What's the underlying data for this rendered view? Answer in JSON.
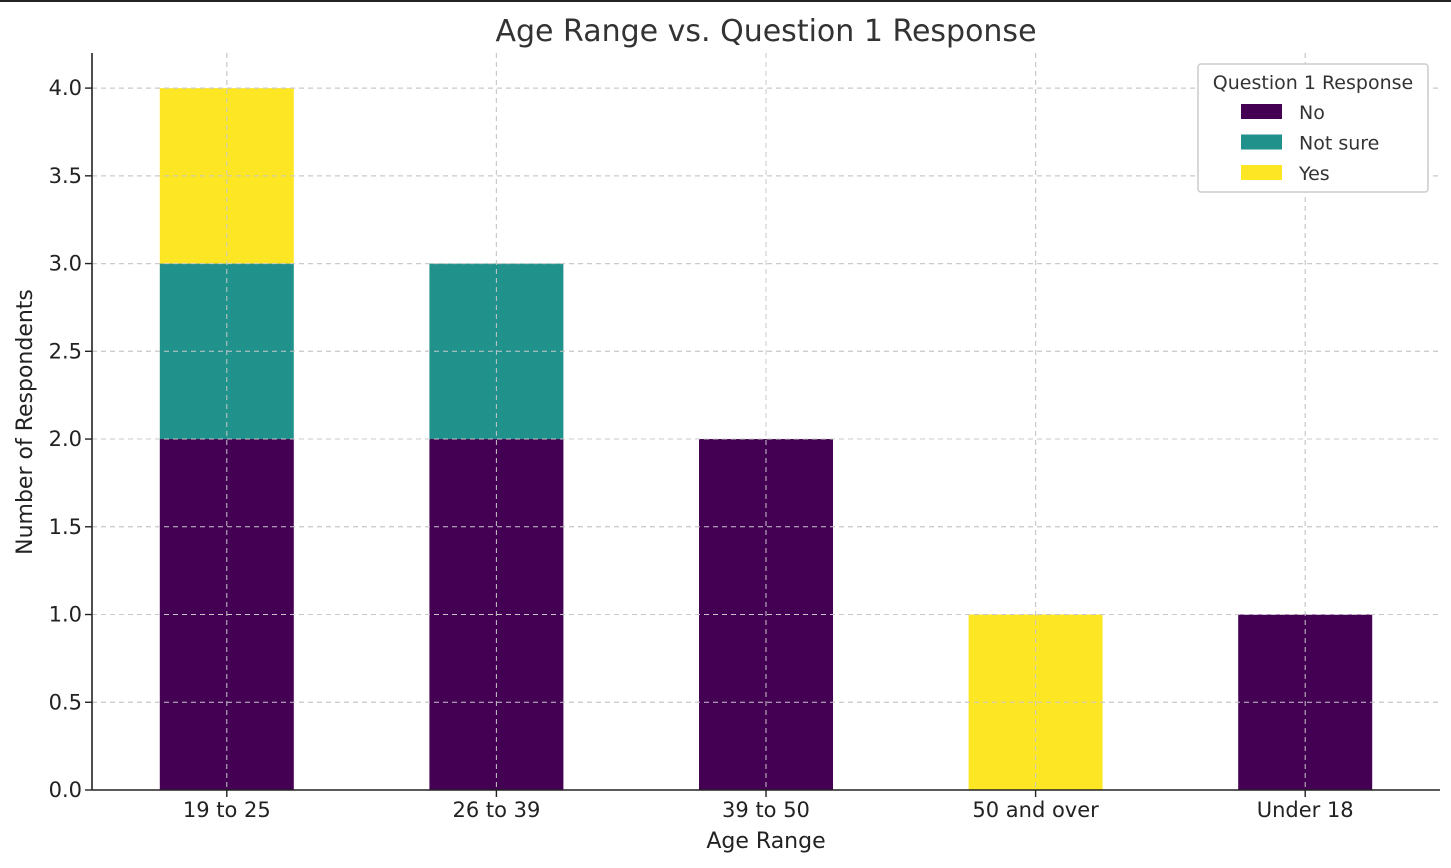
{
  "chart_data": {
    "type": "bar",
    "stacked": true,
    "title": "Age Range vs. Question 1 Response",
    "xlabel": "Age Range",
    "ylabel": "Number of Respondents",
    "categories": [
      "19 to 25",
      "26 to 39",
      "39 to 50",
      "50 and over",
      "Under 18"
    ],
    "series": [
      {
        "name": "No",
        "color": "#440154",
        "values": [
          2,
          2,
          2,
          0,
          1
        ]
      },
      {
        "name": "Not sure",
        "color": "#21918c",
        "values": [
          1,
          1,
          0,
          0,
          0
        ]
      },
      {
        "name": "Yes",
        "color": "#fde725",
        "values": [
          1,
          0,
          0,
          1,
          0
        ]
      }
    ],
    "ylim": [
      0,
      4.2
    ],
    "yticks": [
      "0.0",
      "0.5",
      "1.0",
      "1.5",
      "2.0",
      "2.5",
      "3.0",
      "3.5",
      "4.0"
    ],
    "grid": true,
    "legend": {
      "title": "Question 1 Response",
      "placement": "top-right"
    }
  }
}
